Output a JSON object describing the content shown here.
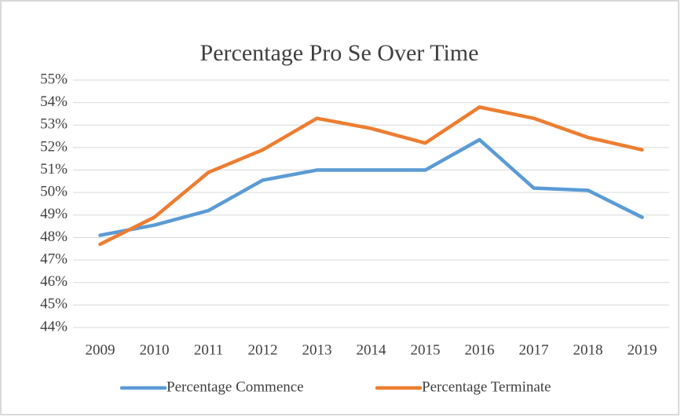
{
  "chart_data": {
    "type": "line",
    "title": "Percentage Pro Se Over Time",
    "categories": [
      "2009",
      "2010",
      "2011",
      "2012",
      "2013",
      "2014",
      "2015",
      "2016",
      "2017",
      "2018",
      "2019"
    ],
    "series": [
      {
        "name": "Percentage Commence",
        "color": "#5b9bd5",
        "values": [
          48.1,
          48.55,
          49.2,
          50.55,
          51.0,
          51.0,
          51.0,
          52.35,
          50.2,
          50.1,
          48.9
        ]
      },
      {
        "name": "Percentage Terminate",
        "color": "#ed7d31",
        "values": [
          47.7,
          48.9,
          50.9,
          51.9,
          53.3,
          52.85,
          52.2,
          53.8,
          53.3,
          52.45,
          51.9
        ]
      }
    ],
    "ylim": [
      44,
      55
    ],
    "yticks": [
      {
        "value": 44,
        "label": "44%"
      },
      {
        "value": 45,
        "label": "45%"
      },
      {
        "value": 46,
        "label": "46%"
      },
      {
        "value": 47,
        "label": "47%"
      },
      {
        "value": 48,
        "label": "48%"
      },
      {
        "value": 49,
        "label": "49%"
      },
      {
        "value": 50,
        "label": "50%"
      },
      {
        "value": 51,
        "label": "51%"
      },
      {
        "value": 52,
        "label": "52%"
      },
      {
        "value": 53,
        "label": "53%"
      },
      {
        "value": 54,
        "label": "54%"
      },
      {
        "value": 55,
        "label": "55%"
      }
    ],
    "grid": true,
    "legend": "bottom"
  }
}
